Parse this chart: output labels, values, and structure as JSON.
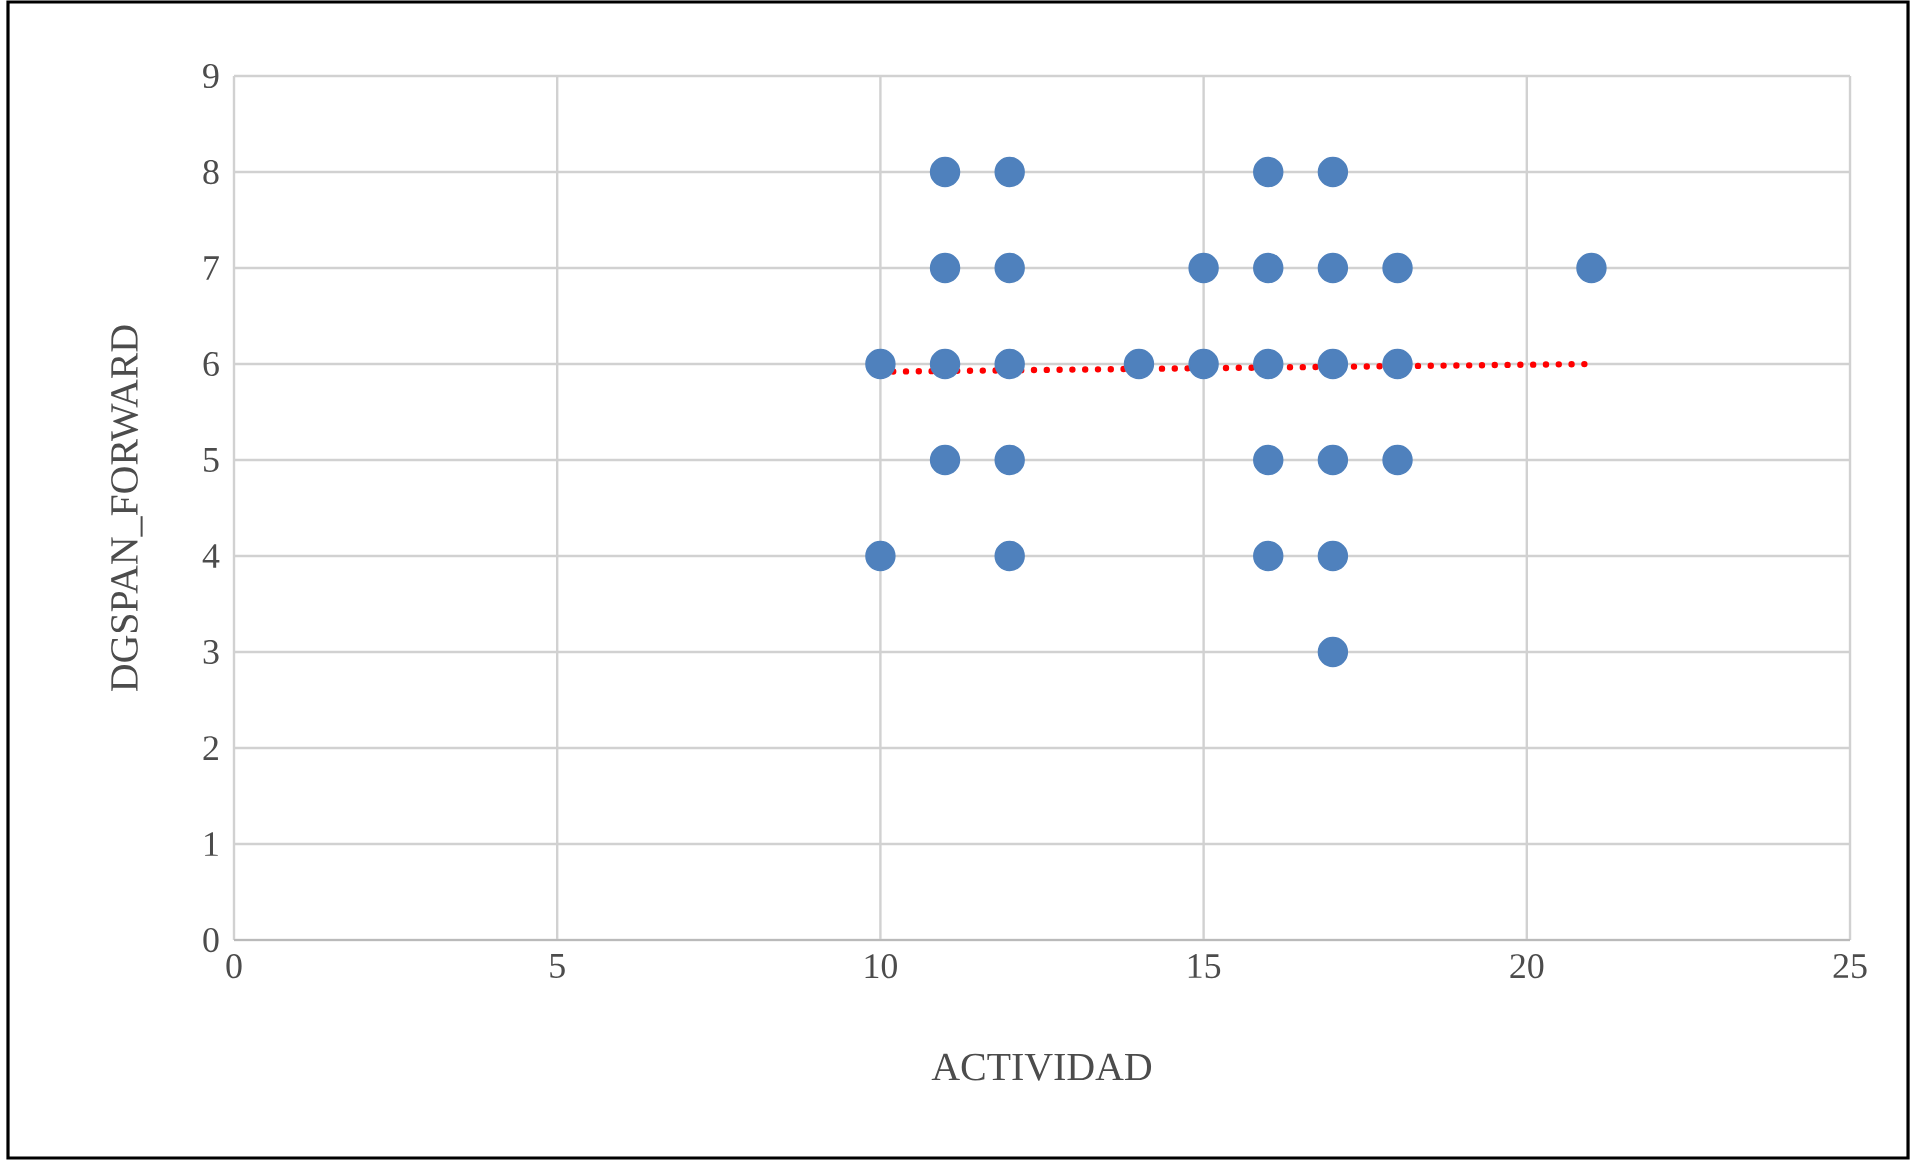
{
  "chart_data": {
    "type": "scatter",
    "xlabel": "ACTIVIDAD",
    "ylabel": "DGSPAN_FORWARD",
    "xlim": [
      0,
      25
    ],
    "ylim": [
      0,
      9
    ],
    "xticks": [
      0,
      5,
      10,
      15,
      20,
      25
    ],
    "yticks": [
      0,
      1,
      2,
      3,
      4,
      5,
      6,
      7,
      8,
      9
    ],
    "grid": true,
    "series": [
      {
        "color": "#4f81bd",
        "marker": "circle",
        "x": [
          10,
          10,
          11,
          11,
          11,
          11,
          12,
          12,
          12,
          12,
          12,
          14,
          15,
          15,
          16,
          16,
          16,
          16,
          16,
          17,
          17,
          17,
          17,
          17,
          17,
          18,
          18,
          18,
          21
        ],
        "values": [
          6,
          4,
          8,
          7,
          6,
          5,
          8,
          7,
          6,
          5,
          4,
          6,
          7,
          6,
          8,
          7,
          6,
          5,
          4,
          8,
          7,
          6,
          5,
          4,
          3,
          7,
          6,
          5,
          7
        ]
      },
      {
        "type": "line",
        "color": "#ff0000",
        "marker": "none",
        "line_style": "dotted",
        "x": [
          10,
          21
        ],
        "values": [
          5.92,
          6.0
        ]
      }
    ]
  }
}
